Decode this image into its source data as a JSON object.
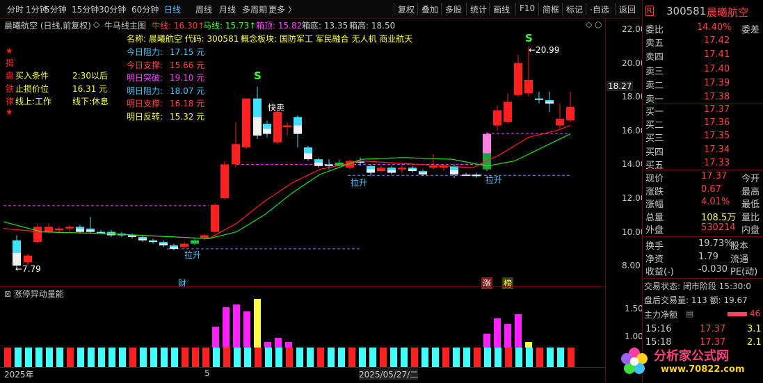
{
  "toolbar": {
    "left": [
      "分时",
      "1分钟",
      "5分钟",
      "15分钟",
      "30分钟",
      "60分钟",
      "日线",
      "周线",
      "月线",
      "多周期",
      "更多 〉"
    ],
    "right": [
      "复权",
      "叠加",
      "多股",
      "统计",
      "画线",
      "F10",
      "简框",
      "标记",
      "·自选",
      "返回"
    ]
  },
  "header": {
    "stock": "晨曦航空 (日线,前复权)",
    "indicator": "牛马线主图",
    "niu_label": "牛线: 16.30↑",
    "ma_label": "马线: 15.73↑",
    "top_label": "箱顶: 15.82",
    "bottom_label": "箱底: 13.35",
    "mid_label": "箱高: 18.50"
  },
  "info": {
    "name_line": "名称: 晨曦航空  代码: 300581",
    "concept": "概念板块: 国防军工 军民融合 无人机 商业航天",
    "left": [
      {
        "k": "今日阻力:",
        "v": "17.15 元"
      },
      {
        "k": "今日支撑:",
        "v": "15.66 元"
      },
      {
        "k": "明日突破:",
        "v": "19.10 元"
      },
      {
        "k": "明日阻力:",
        "v": "18.07 元"
      },
      {
        "k": "明日支撑:",
        "v": "16.18 元"
      },
      {
        "k": "明日反转:",
        "v": "15.32 元"
      }
    ],
    "rules": [
      {
        "k": "盘",
        "a": "买入条件",
        "b": "2:30以后"
      },
      {
        "k": "铁",
        "a": "止损价位",
        "b": "16.31 元"
      },
      {
        "k": "律",
        "a": "线上:工作",
        "b": "线下:休息"
      }
    ],
    "stars": [
      "★",
      "揭",
      "★"
    ]
  },
  "annotations": {
    "s1": "S",
    "s2": "S",
    "kuaimai": "快卖",
    "lasheng": "拉升",
    "low": "←7.79",
    "high": "←20.99",
    "cai": "财",
    "zhang": "涨",
    "bang": "榜",
    "cursor_price": "18.27"
  },
  "axis": {
    "ticks": [
      "22.00",
      "20.00",
      "18.00",
      "16.00",
      "14.00",
      "12.00",
      "10.00",
      "8.00"
    ],
    "sub_ticks": [
      "1.50",
      "1.00"
    ]
  },
  "sub": {
    "title": "涨停异动量能"
  },
  "xlabels": [
    "2025年",
    "5",
    "2025/05/27/二"
  ],
  "quote": {
    "code": "300581",
    "name": "晨曦航空",
    "webi_label": "委比",
    "webi": "14.40%",
    "wecha_label": "委差",
    "sells": [
      {
        "l": "卖五",
        "p": "17.42"
      },
      {
        "l": "卖四",
        "p": "17.41"
      },
      {
        "l": "卖三",
        "p": "17.40"
      },
      {
        "l": "卖二",
        "p": "17.39"
      },
      {
        "l": "卖一",
        "p": "17.38"
      }
    ],
    "buys": [
      {
        "l": "买一",
        "p": "17.37"
      },
      {
        "l": "买二",
        "p": "17.36"
      },
      {
        "l": "买三",
        "p": "17.35"
      },
      {
        "l": "买四",
        "p": "17.34"
      },
      {
        "l": "买五",
        "p": "17.33"
      }
    ],
    "stats": [
      {
        "a": "现价",
        "v": "17.37",
        "b": "今开"
      },
      {
        "a": "涨跌",
        "v": "0.67",
        "b": "最高"
      },
      {
        "a": "涨幅",
        "v": "4.01%",
        "b": "最低"
      },
      {
        "a": "总量",
        "v": "108.5万",
        "b": "量比"
      },
      {
        "a": "外盘",
        "v": "530214",
        "b": "内盘"
      }
    ],
    "stats2": [
      {
        "a": "换手",
        "v": "19.73%",
        "b": "股本"
      },
      {
        "a": "净资",
        "v": "1.79",
        "b": "流通"
      },
      {
        "a": "收益(-)",
        "v": "-0.030",
        "b": "PE(动)"
      }
    ],
    "trade_state": "交易状态: 闭市阶段  15:30:0",
    "after_vol": "盘后交易量: 113  额: 19.67",
    "main_net": "主力净额",
    "main_net_val": "46",
    "ticks": [
      {
        "t": "15:16",
        "p": "17.37",
        "v": "3.1"
      },
      {
        "t": "15:18",
        "p": "17.37",
        "v": "2.1"
      }
    ]
  },
  "watermark": {
    "text": "分析家公式网",
    "url": "www.70822.com"
  }
}
